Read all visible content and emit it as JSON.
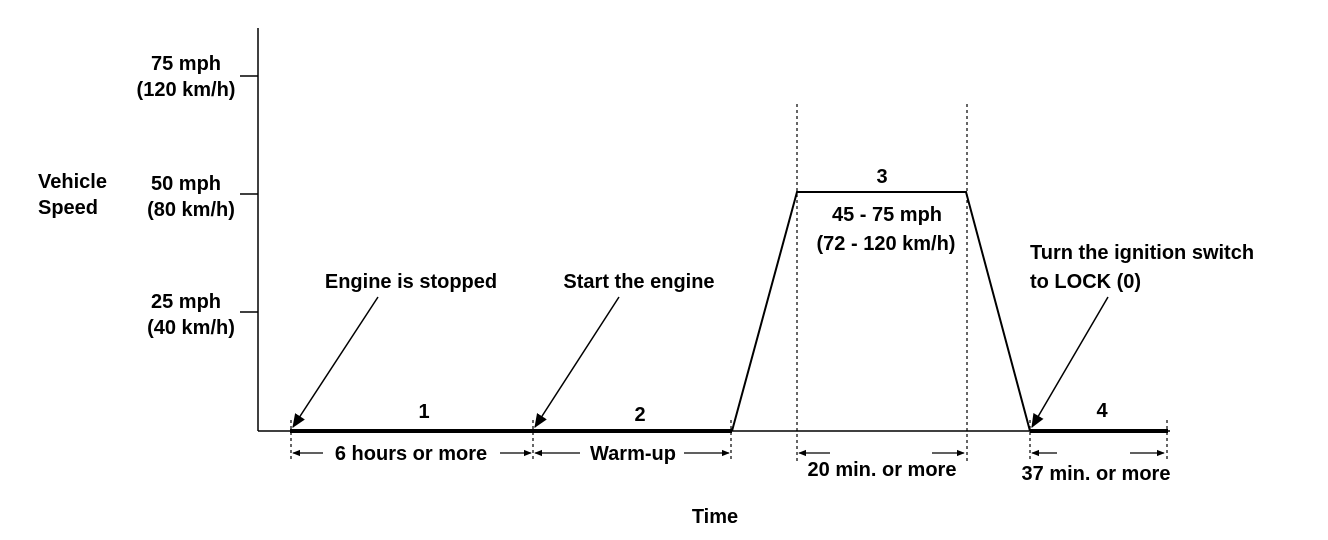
{
  "diagram": {
    "y_axis_label": [
      "Vehicle",
      "Speed"
    ],
    "x_axis_label": "Time",
    "speed_ticks": [
      {
        "mph": "75 mph",
        "kmh": "(120 km/h)"
      },
      {
        "mph": "50 mph",
        "kmh": "(80 km/h)"
      },
      {
        "mph": "25 mph",
        "kmh": "(40 km/h)"
      }
    ],
    "phases": [
      {
        "number": "1",
        "duration": "6 hours or more",
        "callout": [
          "Engine is stopped"
        ]
      },
      {
        "number": "2",
        "duration": "Warm-up",
        "callout": [
          "Start the engine"
        ]
      },
      {
        "number": "3",
        "duration": "20 min. or more",
        "speed_range": [
          "45 - 75 mph",
          "(72 - 120 km/h)"
        ]
      },
      {
        "number": "4",
        "duration": "37 min. or more",
        "callout": [
          "Turn the ignition switch",
          "to LOCK (0)"
        ]
      }
    ]
  }
}
